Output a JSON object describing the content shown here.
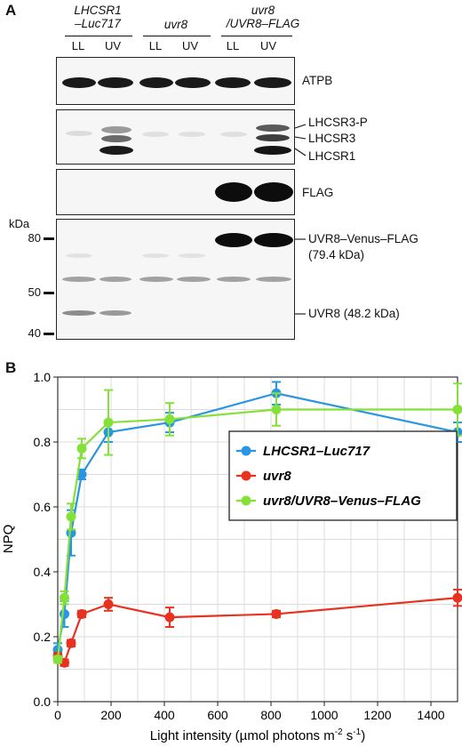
{
  "panel_a": {
    "letter": "A",
    "groups": [
      {
        "line1": "LHCSR1",
        "line2": "–Luc717"
      },
      {
        "line1": "uvr8",
        "line2": ""
      },
      {
        "line1": "uvr8",
        "line2": "/UVR8–FLAG"
      }
    ],
    "lanes": [
      "LL",
      "UV",
      "LL",
      "UV",
      "LL",
      "UV"
    ],
    "blots": {
      "atpb": "ATPB",
      "lhcsr3p": "LHCSR3-P",
      "lhcsr3": "LHCSR3",
      "lhcsr1": "LHCSR1",
      "flag": "FLAG",
      "uvr8vf_1": "UVR8–Venus–FLAG",
      "uvr8vf_2": "(79.4 kDa)",
      "uvr8": "UVR8 (48.2 kDa)"
    },
    "marker_unit": "kDa",
    "markers": [
      "80",
      "50",
      "40"
    ]
  },
  "panel_b": {
    "letter": "B"
  },
  "chart_data": {
    "type": "line",
    "xlabel": "Light intensity (µmol photons m⁻² s⁻¹)",
    "xlabel_main": "Light intensity (µmol photons m",
    "xlabel_sup1": "-2",
    "xlabel_mid": " s",
    "xlabel_sup2": "-1",
    "xlabel_end": ")",
    "ylabel": "NPQ",
    "xlim": [
      0,
      1500
    ],
    "ylim": [
      0.0,
      1.0
    ],
    "xticks": [
      "0",
      "200",
      "400",
      "600",
      "800",
      "1000",
      "1200",
      "1400"
    ],
    "yticks": [
      "0.0",
      "0.2",
      "0.4",
      "0.6",
      "0.8",
      "1.0"
    ],
    "grid": true,
    "legend_position": "middle-right",
    "series": [
      {
        "name": "LHCSR1–Luc717",
        "color": "#2a95e2",
        "x": [
          0,
          25,
          50,
          90,
          190,
          420,
          820,
          1500
        ],
        "y": [
          0.16,
          0.27,
          0.52,
          0.7,
          0.83,
          0.86,
          0.95,
          0.83
        ],
        "err": [
          0.02,
          0.04,
          0.07,
          0.015,
          0.03,
          0.03,
          0.035,
          0.03
        ]
      },
      {
        "name": "uvr8",
        "color": "#e8321f",
        "x": [
          0,
          25,
          50,
          90,
          190,
          420,
          820,
          1500
        ],
        "y": [
          0.14,
          0.12,
          0.18,
          0.27,
          0.3,
          0.26,
          0.27,
          0.32
        ],
        "err": [
          0.01,
          0.01,
          0.01,
          0.01,
          0.02,
          0.03,
          0.01,
          0.025
        ]
      },
      {
        "name": "uvr8/UVR8–Venus–FLAG",
        "color": "#86e03a",
        "x": [
          0,
          25,
          50,
          90,
          190,
          420,
          820,
          1500
        ],
        "y": [
          0.13,
          0.32,
          0.57,
          0.78,
          0.86,
          0.87,
          0.9,
          0.9
        ],
        "err": [
          0.01,
          0.02,
          0.04,
          0.03,
          0.1,
          0.05,
          0.05,
          0.08
        ]
      }
    ]
  }
}
